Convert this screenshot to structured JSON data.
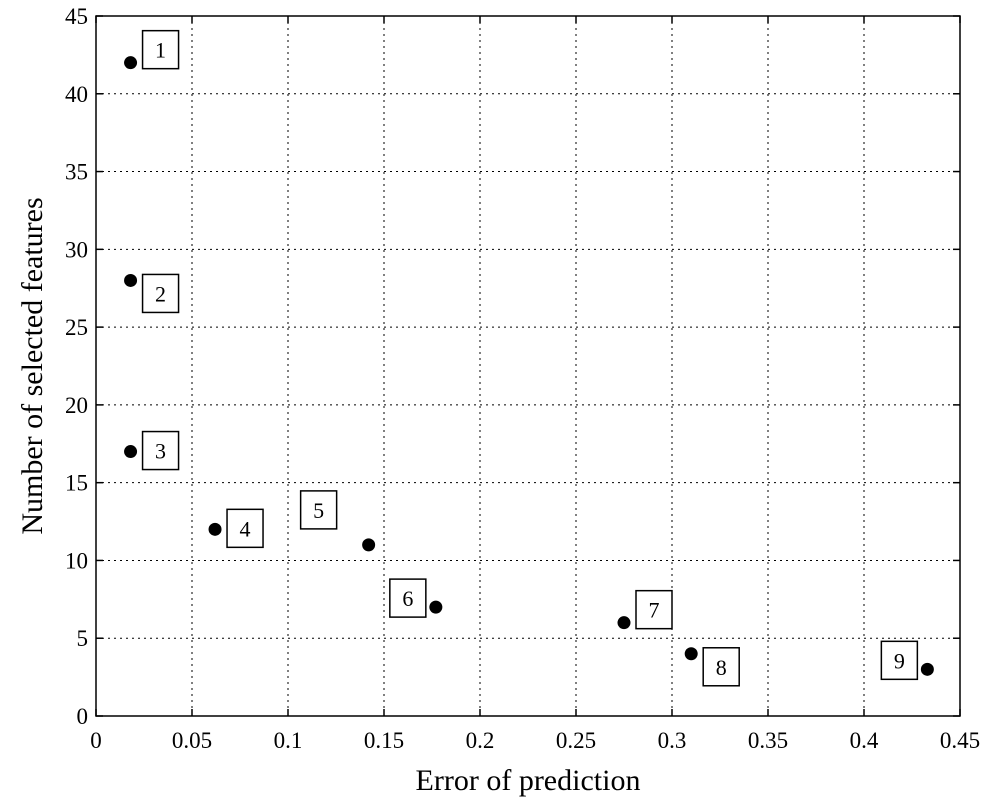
{
  "chart_data": {
    "type": "scatter",
    "title": "",
    "xlabel": "Error of prediction",
    "ylabel": "Number of selected features",
    "xlim": [
      0,
      0.45
    ],
    "ylim": [
      0,
      45
    ],
    "x_ticks": [
      "0",
      "0.05",
      "0.1",
      "0.15",
      "0.2",
      "0.25",
      "0.3",
      "0.35",
      "0.4",
      "0.45"
    ],
    "y_ticks": [
      "0",
      "5",
      "10",
      "15",
      "20",
      "25",
      "30",
      "35",
      "40",
      "45"
    ],
    "grid": true,
    "grid_style": "dotted",
    "marker_color": "#000000",
    "points": [
      {
        "label": "1",
        "x": 0.018,
        "y": 42,
        "label_side": "right-up"
      },
      {
        "label": "2",
        "x": 0.018,
        "y": 28,
        "label_side": "right-down"
      },
      {
        "label": "3",
        "x": 0.018,
        "y": 17,
        "label_side": "right"
      },
      {
        "label": "4",
        "x": 0.062,
        "y": 12,
        "label_side": "right"
      },
      {
        "label": "5",
        "x": 0.142,
        "y": 11,
        "label_side": "left-up"
      },
      {
        "label": "6",
        "x": 0.177,
        "y": 7,
        "label_side": "left"
      },
      {
        "label": "7",
        "x": 0.275,
        "y": 6,
        "label_side": "right-up"
      },
      {
        "label": "8",
        "x": 0.31,
        "y": 4,
        "label_side": "right-down"
      },
      {
        "label": "9",
        "x": 0.433,
        "y": 3,
        "label_side": "left"
      }
    ]
  }
}
